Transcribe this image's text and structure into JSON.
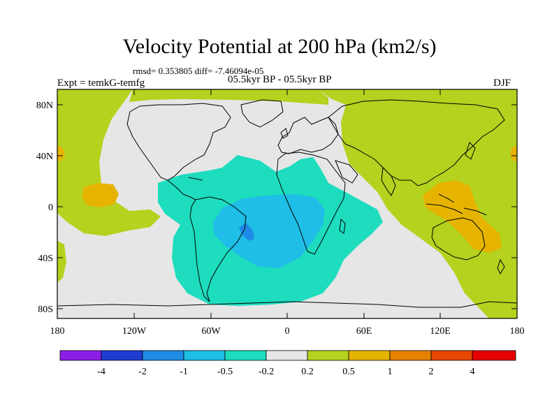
{
  "header": {
    "title": "Velocity Potential at 200 hPa (km2/s)",
    "stats": "rmsd= 0.353805 diff= -7.46094e-05",
    "experiment": "Expt = temkG-temfg",
    "period": "05.5kyr BP - 05.5kyr BP",
    "season": "DJF"
  },
  "axes": {
    "y_ticks": [
      "80N",
      "40N",
      "0",
      "40S",
      "80S"
    ],
    "x_ticks": [
      "180",
      "120W",
      "60W",
      "0",
      "60E",
      "120E",
      "180"
    ]
  },
  "colorbar": {
    "labels": [
      "-4",
      "-2",
      "-1",
      "-0.5",
      "-0.2",
      "0.2",
      "0.5",
      "1",
      "2",
      "4"
    ],
    "colors": [
      "#8c1ee6",
      "#1e3cd2",
      "#1e8ce6",
      "#1ebee6",
      "#1edcbe",
      "#e6e6e6",
      "#b4d21e",
      "#e6b400",
      "#e68200",
      "#e64600",
      "#e60000"
    ]
  }
}
